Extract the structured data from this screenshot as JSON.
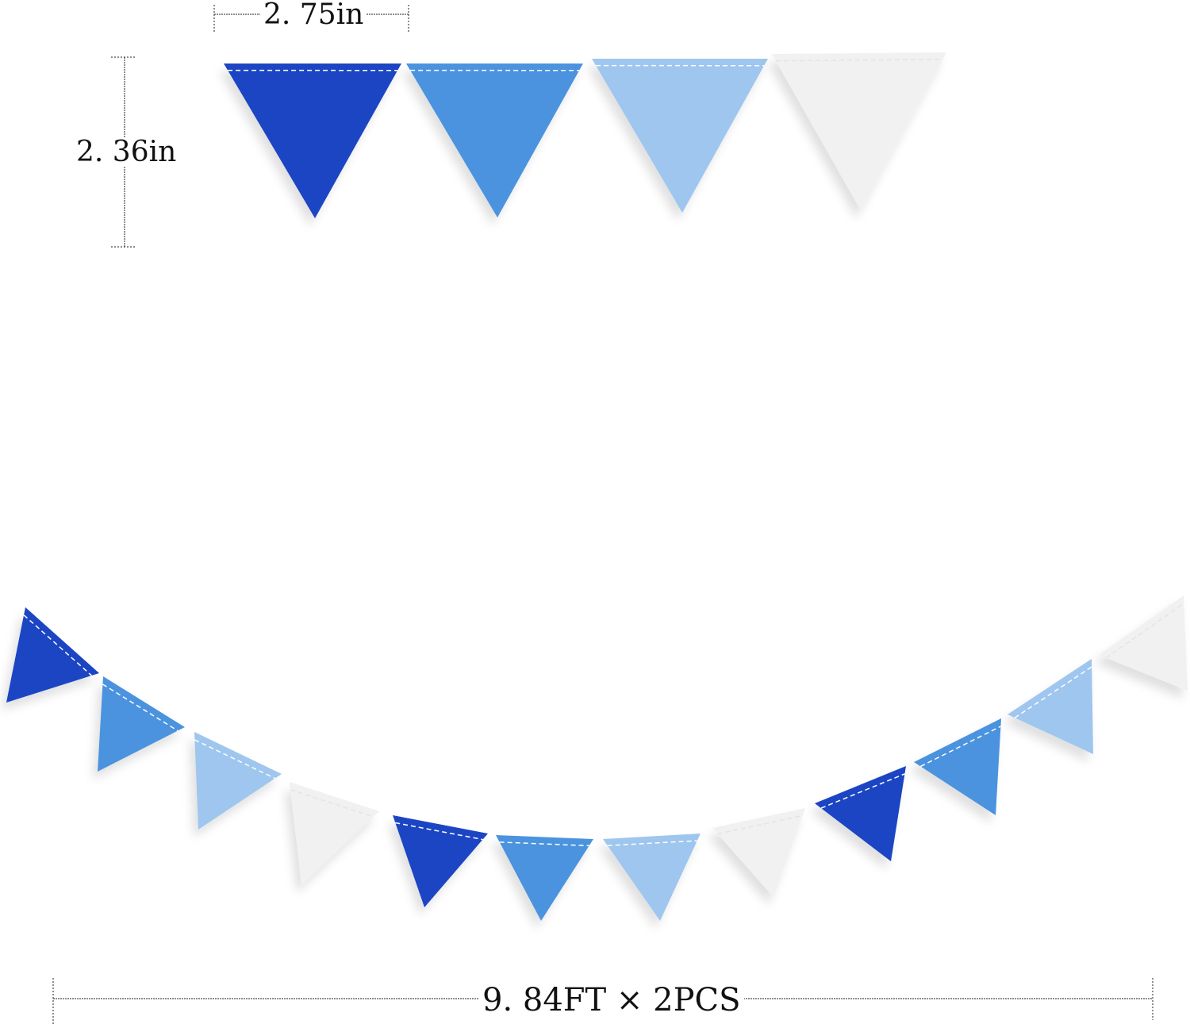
{
  "dimensions": {
    "width_label": "2. 75in",
    "height_label": "2. 36in",
    "length_label": "9. 84FT × 2PCS"
  },
  "colors": {
    "dark_blue": "#1a44c4",
    "mid_blue": "#4b93de",
    "light_blue": "#9fc6ee",
    "white": "#f1f1f1"
  },
  "top_flags": [
    "dark_blue",
    "mid_blue",
    "light_blue",
    "white"
  ],
  "garland_flags": [
    "dark_blue",
    "mid_blue",
    "light_blue",
    "white",
    "dark_blue",
    "mid_blue",
    "light_blue",
    "white",
    "dark_blue",
    "mid_blue",
    "light_blue",
    "white"
  ]
}
